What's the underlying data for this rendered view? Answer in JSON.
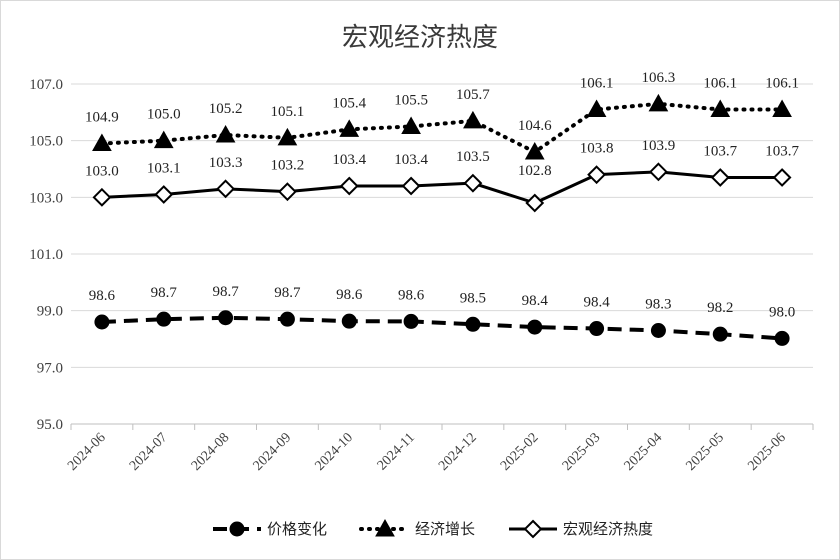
{
  "chart_data": {
    "type": "line",
    "title": "宏观经济热度",
    "xlabel": "",
    "ylabel": "",
    "categories": [
      "2024-06",
      "2024-07",
      "2024-08",
      "2024-09",
      "2024-10",
      "2024-11",
      "2024-12",
      "2025-02",
      "2025-03",
      "2025-04",
      "2025-05",
      "2025-06"
    ],
    "ylim": [
      95.0,
      107.0
    ],
    "yticks": [
      "95.0",
      "97.0",
      "99.0",
      "101.0",
      "103.0",
      "105.0",
      "107.0"
    ],
    "grid": "horizontal",
    "legend_position": "bottom",
    "series": [
      {
        "name": "价格变化",
        "style": "dashed",
        "marker": "circle-filled",
        "values": [
          98.6,
          98.7,
          98.75,
          98.7,
          98.63,
          98.62,
          98.52,
          98.42,
          98.37,
          98.3,
          98.17,
          98.02
        ],
        "labels": [
          "98.6",
          "98.7",
          "98.7",
          "98.7",
          "98.6",
          "98.6",
          "98.5",
          "98.4",
          "98.4",
          "98.3",
          "98.2",
          "98.0"
        ]
      },
      {
        "name": "经济增长",
        "style": "dotted",
        "marker": "triangle-filled",
        "values": [
          104.9,
          105.0,
          105.2,
          105.1,
          105.4,
          105.5,
          105.7,
          104.6,
          106.1,
          106.3,
          106.1,
          106.1
        ],
        "labels": [
          "104.9",
          "105.0",
          "105.2",
          "105.1",
          "105.4",
          "105.5",
          "105.7",
          "104.6",
          "106.1",
          "106.3",
          "106.1",
          "106.1"
        ]
      },
      {
        "name": "宏观经济热度",
        "style": "solid",
        "marker": "diamond-open",
        "values": [
          103.0,
          103.1,
          103.3,
          103.2,
          103.4,
          103.4,
          103.5,
          102.8,
          103.8,
          103.9,
          103.7,
          103.7
        ],
        "labels": [
          "103.0",
          "103.1",
          "103.3",
          "103.2",
          "103.4",
          "103.4",
          "103.5",
          "102.8",
          "103.8",
          "103.9",
          "103.7",
          "103.7"
        ]
      }
    ]
  }
}
